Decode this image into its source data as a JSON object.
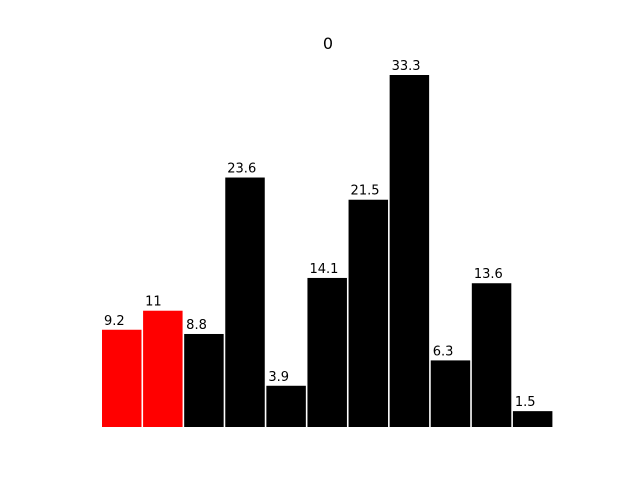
{
  "chart_data": {
    "type": "bar",
    "title": "0",
    "categories": [
      "",
      "",
      "",
      "",
      "",
      "",
      "",
      "",
      "",
      "",
      ""
    ],
    "values": [
      9.2,
      11,
      8.8,
      23.6,
      3.9,
      14.1,
      21.5,
      33.3,
      6.3,
      13.6,
      1.5
    ],
    "value_labels": [
      "9.2",
      "11",
      "8.8",
      "23.6",
      "3.9",
      "14.1",
      "21.5",
      "33.3",
      "6.3",
      "13.6",
      "1.5"
    ],
    "bar_colors": [
      "#ff0000",
      "#ff0000",
      "#000000",
      "#000000",
      "#000000",
      "#000000",
      "#000000",
      "#000000",
      "#000000",
      "#000000",
      "#000000"
    ],
    "highlight_color": "#ff0000",
    "default_color": "#000000",
    "ylim": [
      0,
      33.3
    ],
    "xlabel": "",
    "ylabel": "",
    "axes_visible": false,
    "grid": false,
    "legend": "none"
  }
}
